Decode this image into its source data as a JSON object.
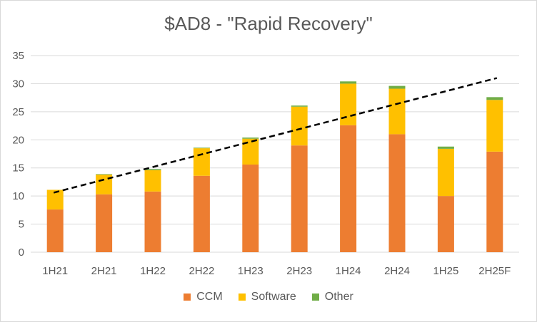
{
  "chart_data": {
    "type": "bar",
    "stacked": true,
    "title": "$AD8 - \"Rapid Recovery\"",
    "xlabel": "",
    "ylabel": "",
    "ylim": [
      0,
      35
    ],
    "yticks": [
      0,
      5,
      10,
      15,
      20,
      25,
      30,
      35
    ],
    "grid": true,
    "legend_position": "bottom",
    "categories": [
      "1H21",
      "2H21",
      "1H22",
      "2H22",
      "1H23",
      "2H23",
      "1H24",
      "2H24",
      "1H25",
      "2H25F"
    ],
    "series": [
      {
        "name": "CCM",
        "color": "#ed7d31",
        "values": [
          7.6,
          10.3,
          10.8,
          13.6,
          15.6,
          19.0,
          22.6,
          21.0,
          10.0,
          17.9
        ]
      },
      {
        "name": "Software",
        "color": "#ffc000",
        "values": [
          3.5,
          3.5,
          3.8,
          4.9,
          4.6,
          6.9,
          7.4,
          8.1,
          8.4,
          9.2
        ]
      },
      {
        "name": "Other",
        "color": "#70ad47",
        "values": [
          0.0,
          0.1,
          0.2,
          0.1,
          0.2,
          0.2,
          0.4,
          0.5,
          0.4,
          0.5
        ]
      }
    ],
    "trendline": {
      "style": "dashed",
      "color": "#000000",
      "start": 10.6,
      "end": 31.0
    }
  }
}
